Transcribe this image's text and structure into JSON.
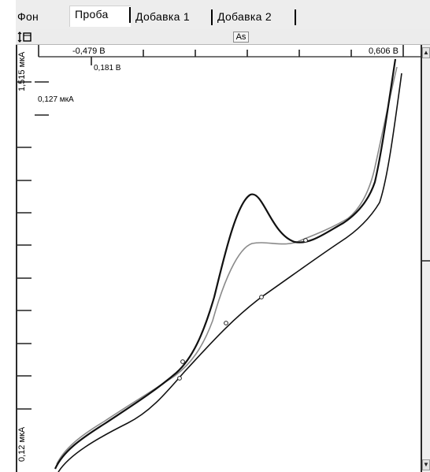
{
  "tabs": [
    {
      "label": "Фон"
    },
    {
      "label": "Проба"
    },
    {
      "label": "Добавка 1"
    },
    {
      "label": "Добавка 2"
    }
  ],
  "active_tab": "Проба",
  "toolbar": {
    "element_label": "As"
  },
  "plot": {
    "potential_start": "-0,479 В",
    "potential_end": "0,606 В",
    "potential_cursor": "0,181 В",
    "current_cursor": "0,127 мкА",
    "current_max": "1,515 мкА",
    "current_min": "0,12 мкА"
  },
  "colors": {
    "curve_dark": "#111111",
    "curve_gray": "#8a8a8a",
    "frame": "#2a2a2a"
  }
}
